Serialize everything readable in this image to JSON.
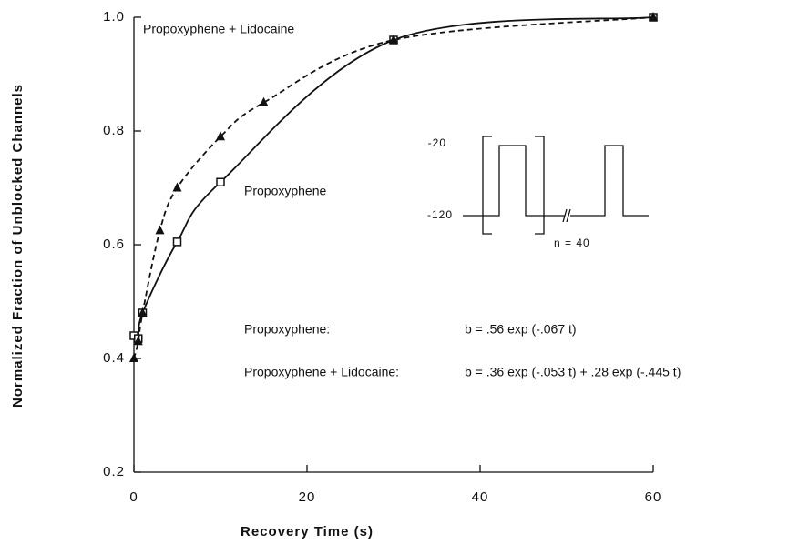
{
  "chart_data": {
    "type": "line",
    "xlabel": "Recovery  Time  (s)",
    "ylabel": "Normalized  Fraction  of  Unblocked  Channels",
    "xlim": [
      0,
      60
    ],
    "xticks": [
      0,
      20,
      40,
      60
    ],
    "ylim": [
      0.2,
      1.0
    ],
    "yticks": [
      {
        "value": 0.2,
        "label": "0.2"
      },
      {
        "value": 0.4,
        "label": "0.4"
      },
      {
        "value": 0.6,
        "label": "0.6"
      },
      {
        "value": 0.8,
        "label": "0.8"
      },
      {
        "value": 1.0,
        "label": "1.0"
      }
    ],
    "series": [
      {
        "name": "Propoxyphene",
        "color": "#111111",
        "dash": false,
        "marker": "square",
        "x": [
          0,
          0.5,
          1,
          5,
          10,
          30,
          60
        ],
        "values": [
          0.44,
          0.435,
          0.48,
          0.605,
          0.71,
          0.96,
          1.0
        ]
      },
      {
        "name": "Propoxyphene + Lidocaine",
        "color": "#111111",
        "dash": true,
        "marker": "triangle",
        "x": [
          0,
          0.5,
          1,
          3,
          5,
          10,
          15,
          30,
          60
        ],
        "values": [
          0.4,
          0.43,
          0.48,
          0.625,
          0.7,
          0.79,
          0.85,
          0.96,
          1.0
        ]
      }
    ],
    "annotations": [
      "Propoxyphene:",
      "b =  .56 exp (-.067 t)",
      "Propoxyphene + Lidocaine:",
      "b =  .36 exp (-.053 t) + .28 exp (-.445 t)",
      "-20",
      "-120",
      "n = 40"
    ]
  }
}
